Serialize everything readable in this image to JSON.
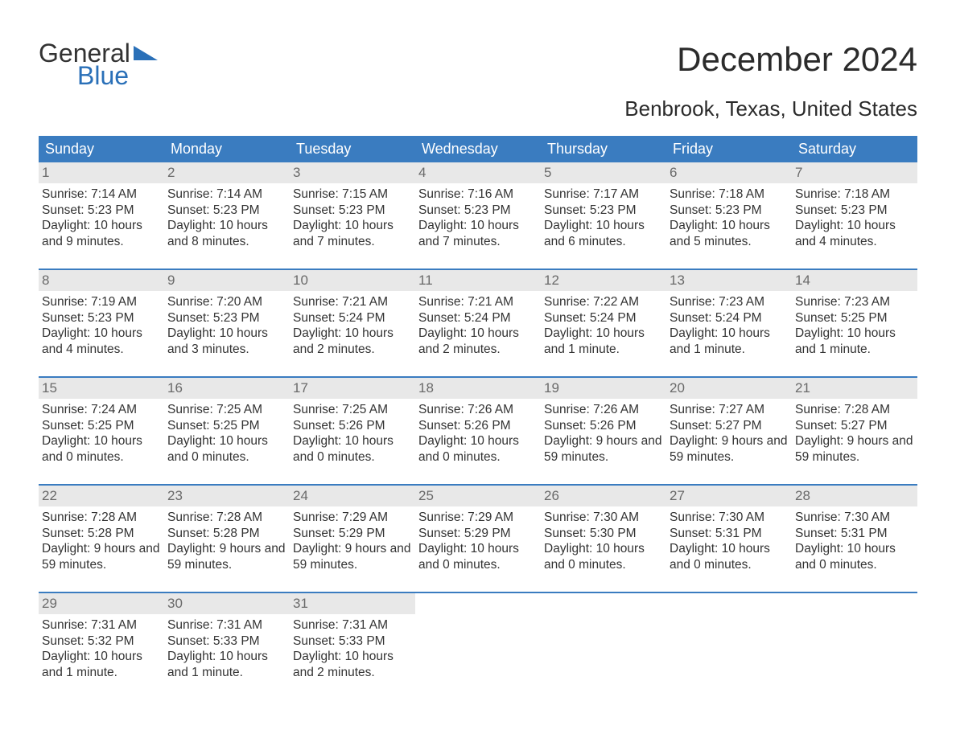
{
  "logo": {
    "text1": "General",
    "text2": "Blue",
    "tri_color": "#2a70b8"
  },
  "title": "December 2024",
  "location": "Benbrook, Texas, United States",
  "colors": {
    "header_bg": "#3a7cc0",
    "header_text": "#ffffff",
    "daynum_bg": "#e8e8e8",
    "daynum_text": "#6a6a6a",
    "body_text": "#333333",
    "rule": "#3a7cc0",
    "logo_blue": "#2a70b8"
  },
  "weekdays": [
    "Sunday",
    "Monday",
    "Tuesday",
    "Wednesday",
    "Thursday",
    "Friday",
    "Saturday"
  ],
  "weeks": [
    [
      {
        "n": "1",
        "sunrise": "7:14 AM",
        "sunset": "5:23 PM",
        "daylight": "10 hours and 9 minutes."
      },
      {
        "n": "2",
        "sunrise": "7:14 AM",
        "sunset": "5:23 PM",
        "daylight": "10 hours and 8 minutes."
      },
      {
        "n": "3",
        "sunrise": "7:15 AM",
        "sunset": "5:23 PM",
        "daylight": "10 hours and 7 minutes."
      },
      {
        "n": "4",
        "sunrise": "7:16 AM",
        "sunset": "5:23 PM",
        "daylight": "10 hours and 7 minutes."
      },
      {
        "n": "5",
        "sunrise": "7:17 AM",
        "sunset": "5:23 PM",
        "daylight": "10 hours and 6 minutes."
      },
      {
        "n": "6",
        "sunrise": "7:18 AM",
        "sunset": "5:23 PM",
        "daylight": "10 hours and 5 minutes."
      },
      {
        "n": "7",
        "sunrise": "7:18 AM",
        "sunset": "5:23 PM",
        "daylight": "10 hours and 4 minutes."
      }
    ],
    [
      {
        "n": "8",
        "sunrise": "7:19 AM",
        "sunset": "5:23 PM",
        "daylight": "10 hours and 4 minutes."
      },
      {
        "n": "9",
        "sunrise": "7:20 AM",
        "sunset": "5:23 PM",
        "daylight": "10 hours and 3 minutes."
      },
      {
        "n": "10",
        "sunrise": "7:21 AM",
        "sunset": "5:24 PM",
        "daylight": "10 hours and 2 minutes."
      },
      {
        "n": "11",
        "sunrise": "7:21 AM",
        "sunset": "5:24 PM",
        "daylight": "10 hours and 2 minutes."
      },
      {
        "n": "12",
        "sunrise": "7:22 AM",
        "sunset": "5:24 PM",
        "daylight": "10 hours and 1 minute."
      },
      {
        "n": "13",
        "sunrise": "7:23 AM",
        "sunset": "5:24 PM",
        "daylight": "10 hours and 1 minute."
      },
      {
        "n": "14",
        "sunrise": "7:23 AM",
        "sunset": "5:25 PM",
        "daylight": "10 hours and 1 minute."
      }
    ],
    [
      {
        "n": "15",
        "sunrise": "7:24 AM",
        "sunset": "5:25 PM",
        "daylight": "10 hours and 0 minutes."
      },
      {
        "n": "16",
        "sunrise": "7:25 AM",
        "sunset": "5:25 PM",
        "daylight": "10 hours and 0 minutes."
      },
      {
        "n": "17",
        "sunrise": "7:25 AM",
        "sunset": "5:26 PM",
        "daylight": "10 hours and 0 minutes."
      },
      {
        "n": "18",
        "sunrise": "7:26 AM",
        "sunset": "5:26 PM",
        "daylight": "10 hours and 0 minutes."
      },
      {
        "n": "19",
        "sunrise": "7:26 AM",
        "sunset": "5:26 PM",
        "daylight": "9 hours and 59 minutes."
      },
      {
        "n": "20",
        "sunrise": "7:27 AM",
        "sunset": "5:27 PM",
        "daylight": "9 hours and 59 minutes."
      },
      {
        "n": "21",
        "sunrise": "7:28 AM",
        "sunset": "5:27 PM",
        "daylight": "9 hours and 59 minutes."
      }
    ],
    [
      {
        "n": "22",
        "sunrise": "7:28 AM",
        "sunset": "5:28 PM",
        "daylight": "9 hours and 59 minutes."
      },
      {
        "n": "23",
        "sunrise": "7:28 AM",
        "sunset": "5:28 PM",
        "daylight": "9 hours and 59 minutes."
      },
      {
        "n": "24",
        "sunrise": "7:29 AM",
        "sunset": "5:29 PM",
        "daylight": "9 hours and 59 minutes."
      },
      {
        "n": "25",
        "sunrise": "7:29 AM",
        "sunset": "5:29 PM",
        "daylight": "10 hours and 0 minutes."
      },
      {
        "n": "26",
        "sunrise": "7:30 AM",
        "sunset": "5:30 PM",
        "daylight": "10 hours and 0 minutes."
      },
      {
        "n": "27",
        "sunrise": "7:30 AM",
        "sunset": "5:31 PM",
        "daylight": "10 hours and 0 minutes."
      },
      {
        "n": "28",
        "sunrise": "7:30 AM",
        "sunset": "5:31 PM",
        "daylight": "10 hours and 0 minutes."
      }
    ],
    [
      {
        "n": "29",
        "sunrise": "7:31 AM",
        "sunset": "5:32 PM",
        "daylight": "10 hours and 1 minute."
      },
      {
        "n": "30",
        "sunrise": "7:31 AM",
        "sunset": "5:33 PM",
        "daylight": "10 hours and 1 minute."
      },
      {
        "n": "31",
        "sunrise": "7:31 AM",
        "sunset": "5:33 PM",
        "daylight": "10 hours and 2 minutes."
      },
      {
        "empty": true
      },
      {
        "empty": true
      },
      {
        "empty": true
      },
      {
        "empty": true
      }
    ]
  ],
  "labels": {
    "sunrise": "Sunrise: ",
    "sunset": "Sunset: ",
    "daylight": "Daylight: "
  }
}
